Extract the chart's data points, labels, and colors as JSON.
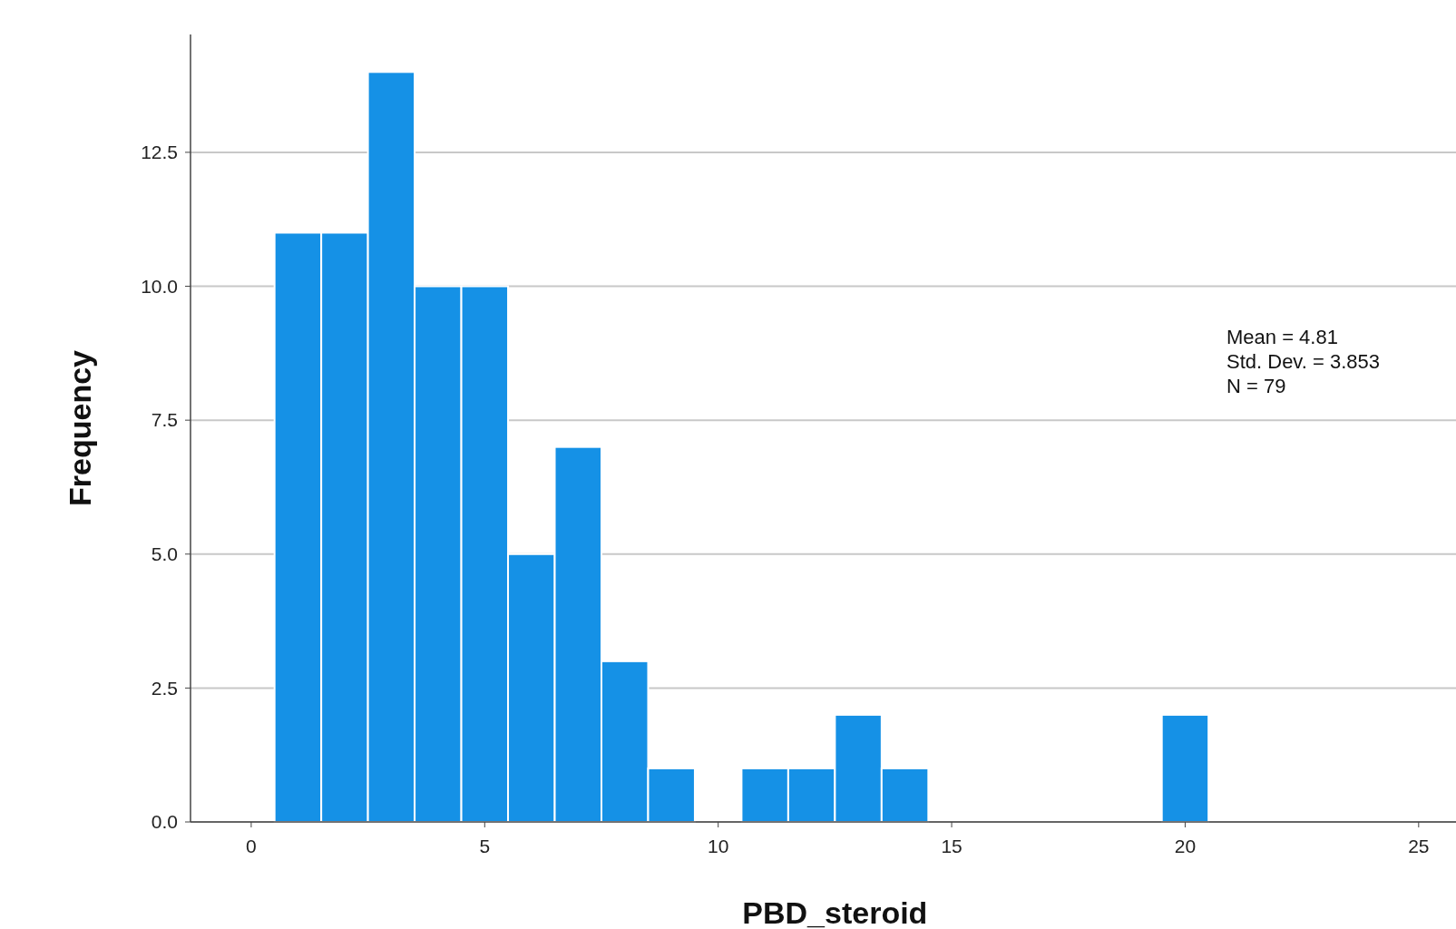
{
  "chart_data": {
    "type": "histogram",
    "xlabel": "PBD_steroid",
    "ylabel": "Frequency",
    "color": "#1591e6",
    "bins": [
      0.5,
      1.5,
      2.5,
      3.5,
      4.5,
      5.5,
      6.5,
      7.5,
      8.5,
      9.5,
      10.5,
      11.5,
      12.5,
      13.5,
      14.5,
      15.5,
      16.5,
      17.5,
      18.5,
      19.5,
      20.5
    ],
    "values": [
      11,
      11,
      14,
      10,
      10,
      5,
      7,
      3,
      1,
      0,
      1,
      1,
      2,
      1,
      0,
      0,
      0,
      0,
      0,
      2
    ],
    "xlim": [
      -1.3,
      25.8
    ],
    "xticks": [
      0,
      5,
      10,
      15,
      20,
      25
    ],
    "ylim": [
      0,
      14.7
    ],
    "yticks": [
      {
        "value": 0,
        "label": "0.0"
      },
      {
        "value": 2.5,
        "label": "2.5"
      },
      {
        "value": 5,
        "label": "5.0"
      },
      {
        "value": 7.5,
        "label": "7.5"
      },
      {
        "value": 10,
        "label": "10.0"
      },
      {
        "value": 12.5,
        "label": "12.5"
      }
    ],
    "grid": "y",
    "annotations": [
      "Mean = 4.81",
      "Std. Dev. = 3.853",
      "N = 79"
    ]
  }
}
